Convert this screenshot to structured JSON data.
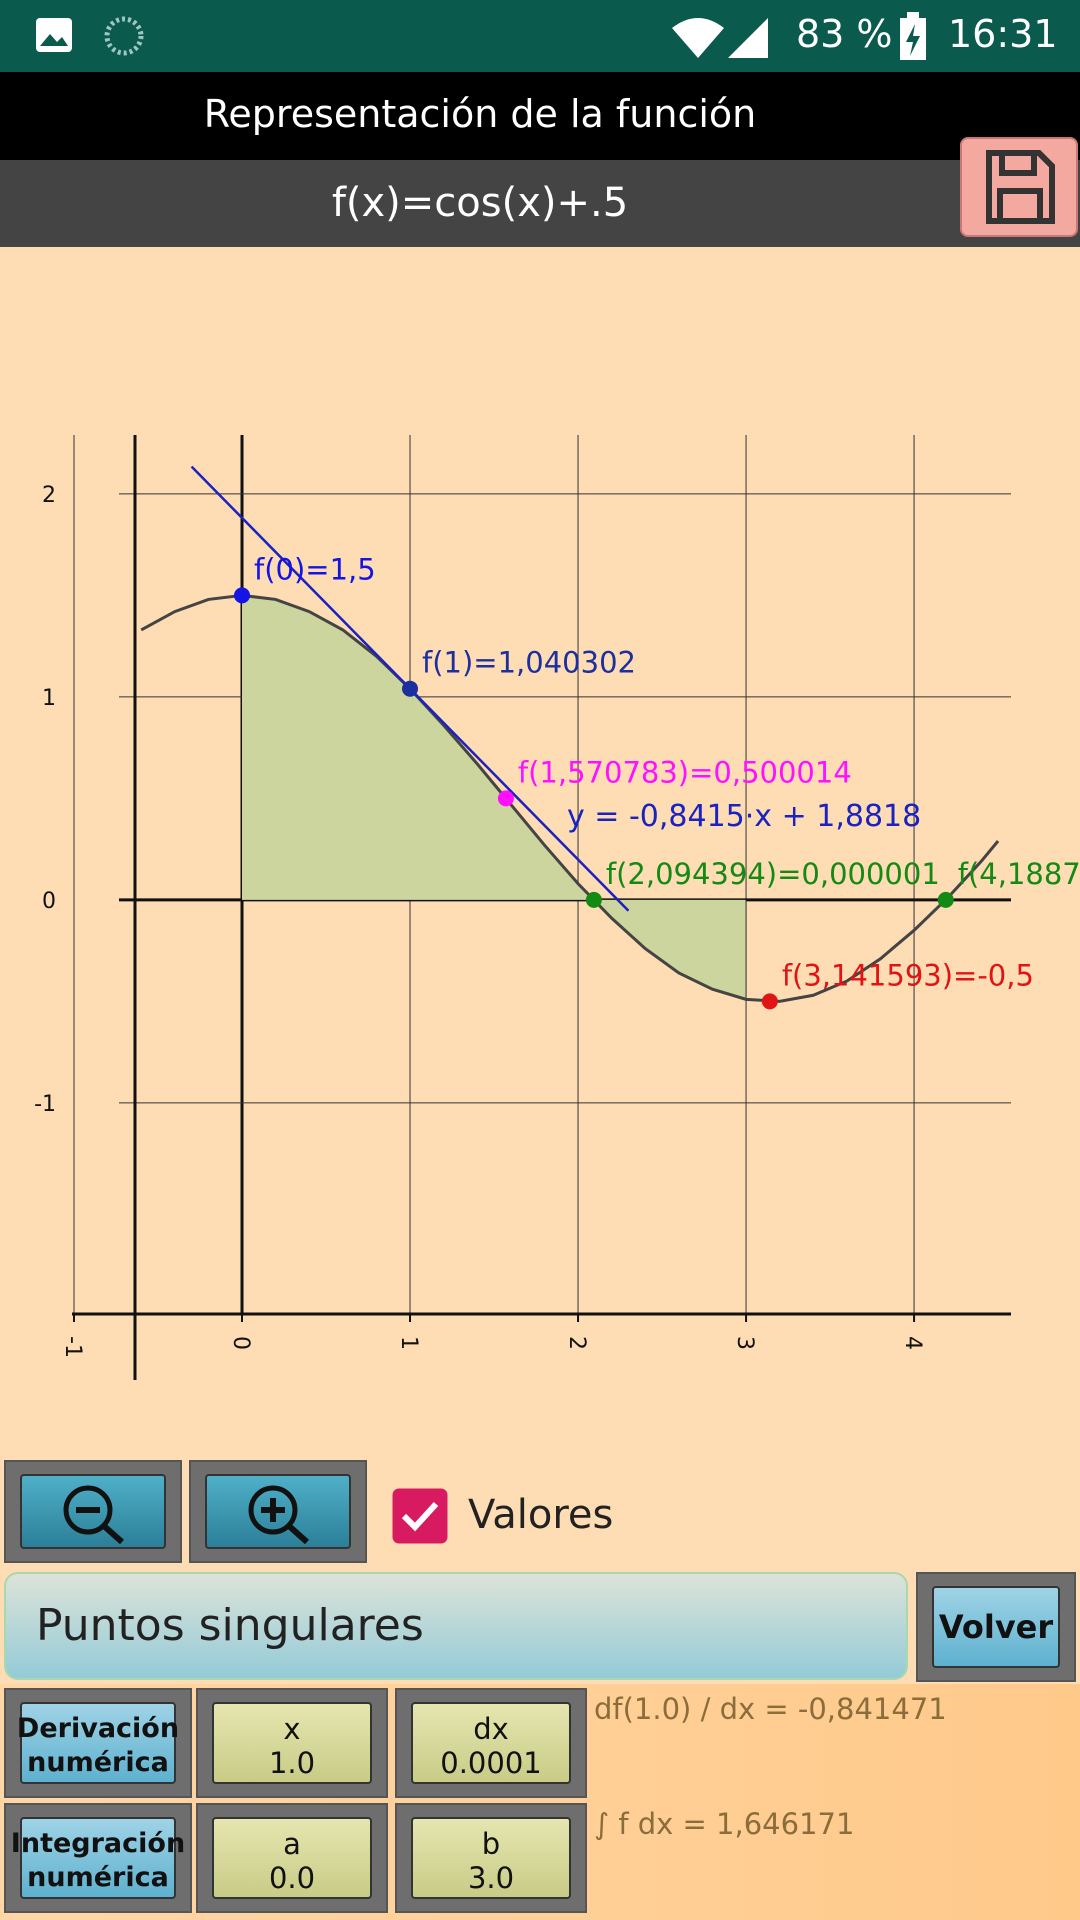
{
  "status_bar": {
    "battery": "83 %",
    "time": "16:31"
  },
  "header": {
    "title": "Representación de la función",
    "formula": "f(x)=cos(x)+.5"
  },
  "chart_data": {
    "type": "line",
    "x": [
      -0.6,
      -0.4,
      -0.2,
      0,
      0.2,
      0.4,
      0.6,
      0.8,
      1.0,
      1.2,
      1.4,
      1.6,
      1.8,
      2.0,
      2.2,
      2.4,
      2.6,
      2.8,
      3.0,
      3.2,
      3.4,
      3.6,
      3.8,
      4.0,
      4.2,
      4.4,
      4.5
    ],
    "series": [
      {
        "color": "#444444",
        "values": [
          1.33,
          1.42,
          1.48,
          1.5,
          1.48,
          1.42,
          1.33,
          1.2,
          1.04,
          0.86,
          0.67,
          0.47,
          0.27,
          0.08,
          -0.09,
          -0.24,
          -0.36,
          -0.44,
          -0.49,
          -0.5,
          -0.47,
          -0.4,
          -0.29,
          -0.15,
          0.01,
          0.19,
          0.29
        ]
      }
    ],
    "xlim": [
      -1,
      4.577
    ],
    "ylim": [
      -2.04,
      2.29
    ],
    "xticks": [
      -1,
      0,
      1,
      2,
      3,
      4
    ],
    "yticks": [
      -1,
      0,
      1,
      2
    ],
    "grid": true,
    "area": {
      "color": "#cdd59f",
      "from": 0,
      "to": 3
    },
    "tangent": {
      "equation": "y = -0,8415·x + 1,8818",
      "slope": -0.8415,
      "intercept": 1.8818,
      "x": [
        -0.3,
        2.3
      ],
      "color": "#1a22c0"
    },
    "points": [
      {
        "x": 0,
        "y": 1.5,
        "label": "f(0)=1,5",
        "color": "#1414e6"
      },
      {
        "x": 1,
        "y": 1.040302,
        "label": "f(1)=1,040302",
        "color": "#1b2f9e"
      },
      {
        "x": 1.570783,
        "y": 0.500014,
        "label": "f(1,570783)=0,500014",
        "color": "#ff10ff"
      },
      {
        "x": 2.094394,
        "y": 1e-06,
        "label": "f(2,094394)=0,000001",
        "color": "#138a13"
      },
      {
        "x": 4.1887,
        "y": 0,
        "label": "f(4,1887",
        "color": "#138a13"
      },
      {
        "x": 3.141593,
        "y": -0.5,
        "label": "f(3,141593)=-0,5",
        "color": "#e01414"
      }
    ]
  },
  "checkbox": {
    "label": "Valores",
    "checked": true
  },
  "panel": {
    "title": "Puntos singulares",
    "back": "Volver"
  },
  "rows": [
    {
      "button": [
        "Derivación",
        "numérica"
      ],
      "inputs": [
        [
          "x",
          "1.0"
        ],
        [
          "dx",
          "0.0001"
        ]
      ],
      "result": "df(1.0) / dx = -0,841471"
    },
    {
      "button": [
        "Integración",
        "numérica"
      ],
      "inputs": [
        [
          "a",
          "0.0"
        ],
        [
          "b",
          "3.0"
        ]
      ],
      "result": "∫ f dx = 1,646171"
    }
  ]
}
